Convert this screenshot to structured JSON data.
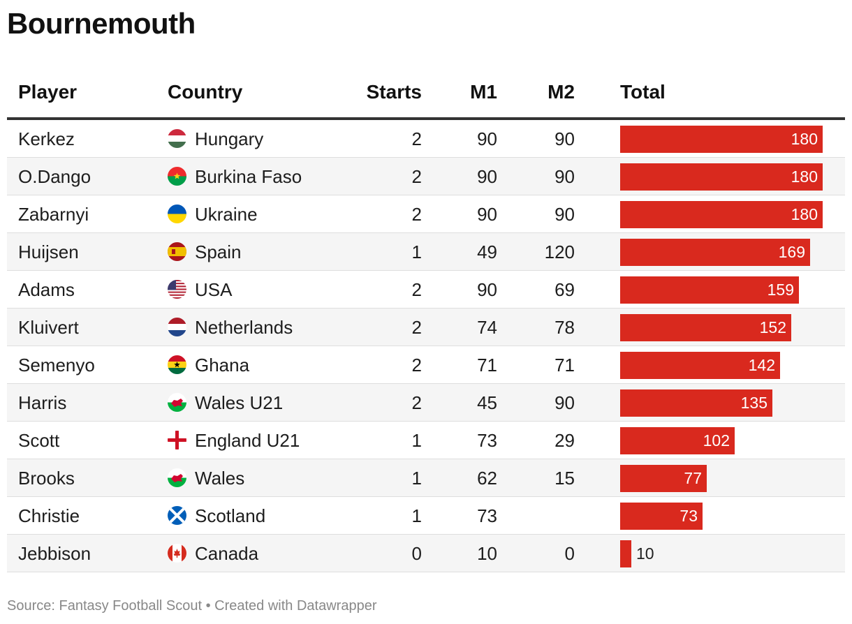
{
  "title": "Bournemouth",
  "headers": {
    "player": "Player",
    "country": "Country",
    "starts": "Starts",
    "m1": "M1",
    "m2": "M2",
    "total": "Total"
  },
  "source": "Source: Fantasy Football Scout • Created with Datawrapper",
  "chart_data": {
    "type": "table",
    "title": "Bournemouth",
    "columns": [
      "Player",
      "Country",
      "Starts",
      "M1",
      "M2",
      "Total"
    ],
    "total_max": 180,
    "bar_color": "#d9291e",
    "rows": [
      {
        "player": "Kerkez",
        "country": "Hungary",
        "flag": "hungary-flag-icon",
        "starts": "2",
        "m1": "90",
        "m2": "90",
        "total": 180
      },
      {
        "player": "O.Dango",
        "country": "Burkina Faso",
        "flag": "burkina-faso-flag-icon",
        "starts": "2",
        "m1": "90",
        "m2": "90",
        "total": 180
      },
      {
        "player": "Zabarnyi",
        "country": "Ukraine",
        "flag": "ukraine-flag-icon",
        "starts": "2",
        "m1": "90",
        "m2": "90",
        "total": 180
      },
      {
        "player": "Huijsen",
        "country": "Spain",
        "flag": "spain-flag-icon",
        "starts": "1",
        "m1": "49",
        "m2": "120",
        "total": 169
      },
      {
        "player": "Adams",
        "country": "USA",
        "flag": "usa-flag-icon",
        "starts": "2",
        "m1": "90",
        "m2": "69",
        "total": 159
      },
      {
        "player": "Kluivert",
        "country": "Netherlands",
        "flag": "netherlands-flag-icon",
        "starts": "2",
        "m1": "74",
        "m2": "78",
        "total": 152
      },
      {
        "player": "Semenyo",
        "country": "Ghana",
        "flag": "ghana-flag-icon",
        "starts": "2",
        "m1": "71",
        "m2": "71",
        "total": 142
      },
      {
        "player": "Harris",
        "country": "Wales U21",
        "flag": "wales-flag-icon",
        "starts": "2",
        "m1": "45",
        "m2": "90",
        "total": 135
      },
      {
        "player": "Scott",
        "country": "England U21",
        "flag": "england-flag-icon",
        "starts": "1",
        "m1": "73",
        "m2": "29",
        "total": 102
      },
      {
        "player": "Brooks",
        "country": "Wales",
        "flag": "wales-flag-icon",
        "starts": "1",
        "m1": "62",
        "m2": "15",
        "total": 77
      },
      {
        "player": "Christie",
        "country": "Scotland",
        "flag": "scotland-flag-icon",
        "starts": "1",
        "m1": "73",
        "m2": "",
        "total": 73
      },
      {
        "player": "Jebbison",
        "country": "Canada",
        "flag": "canada-flag-icon",
        "starts": "0",
        "m1": "10",
        "m2": "0",
        "total": 10
      }
    ]
  }
}
